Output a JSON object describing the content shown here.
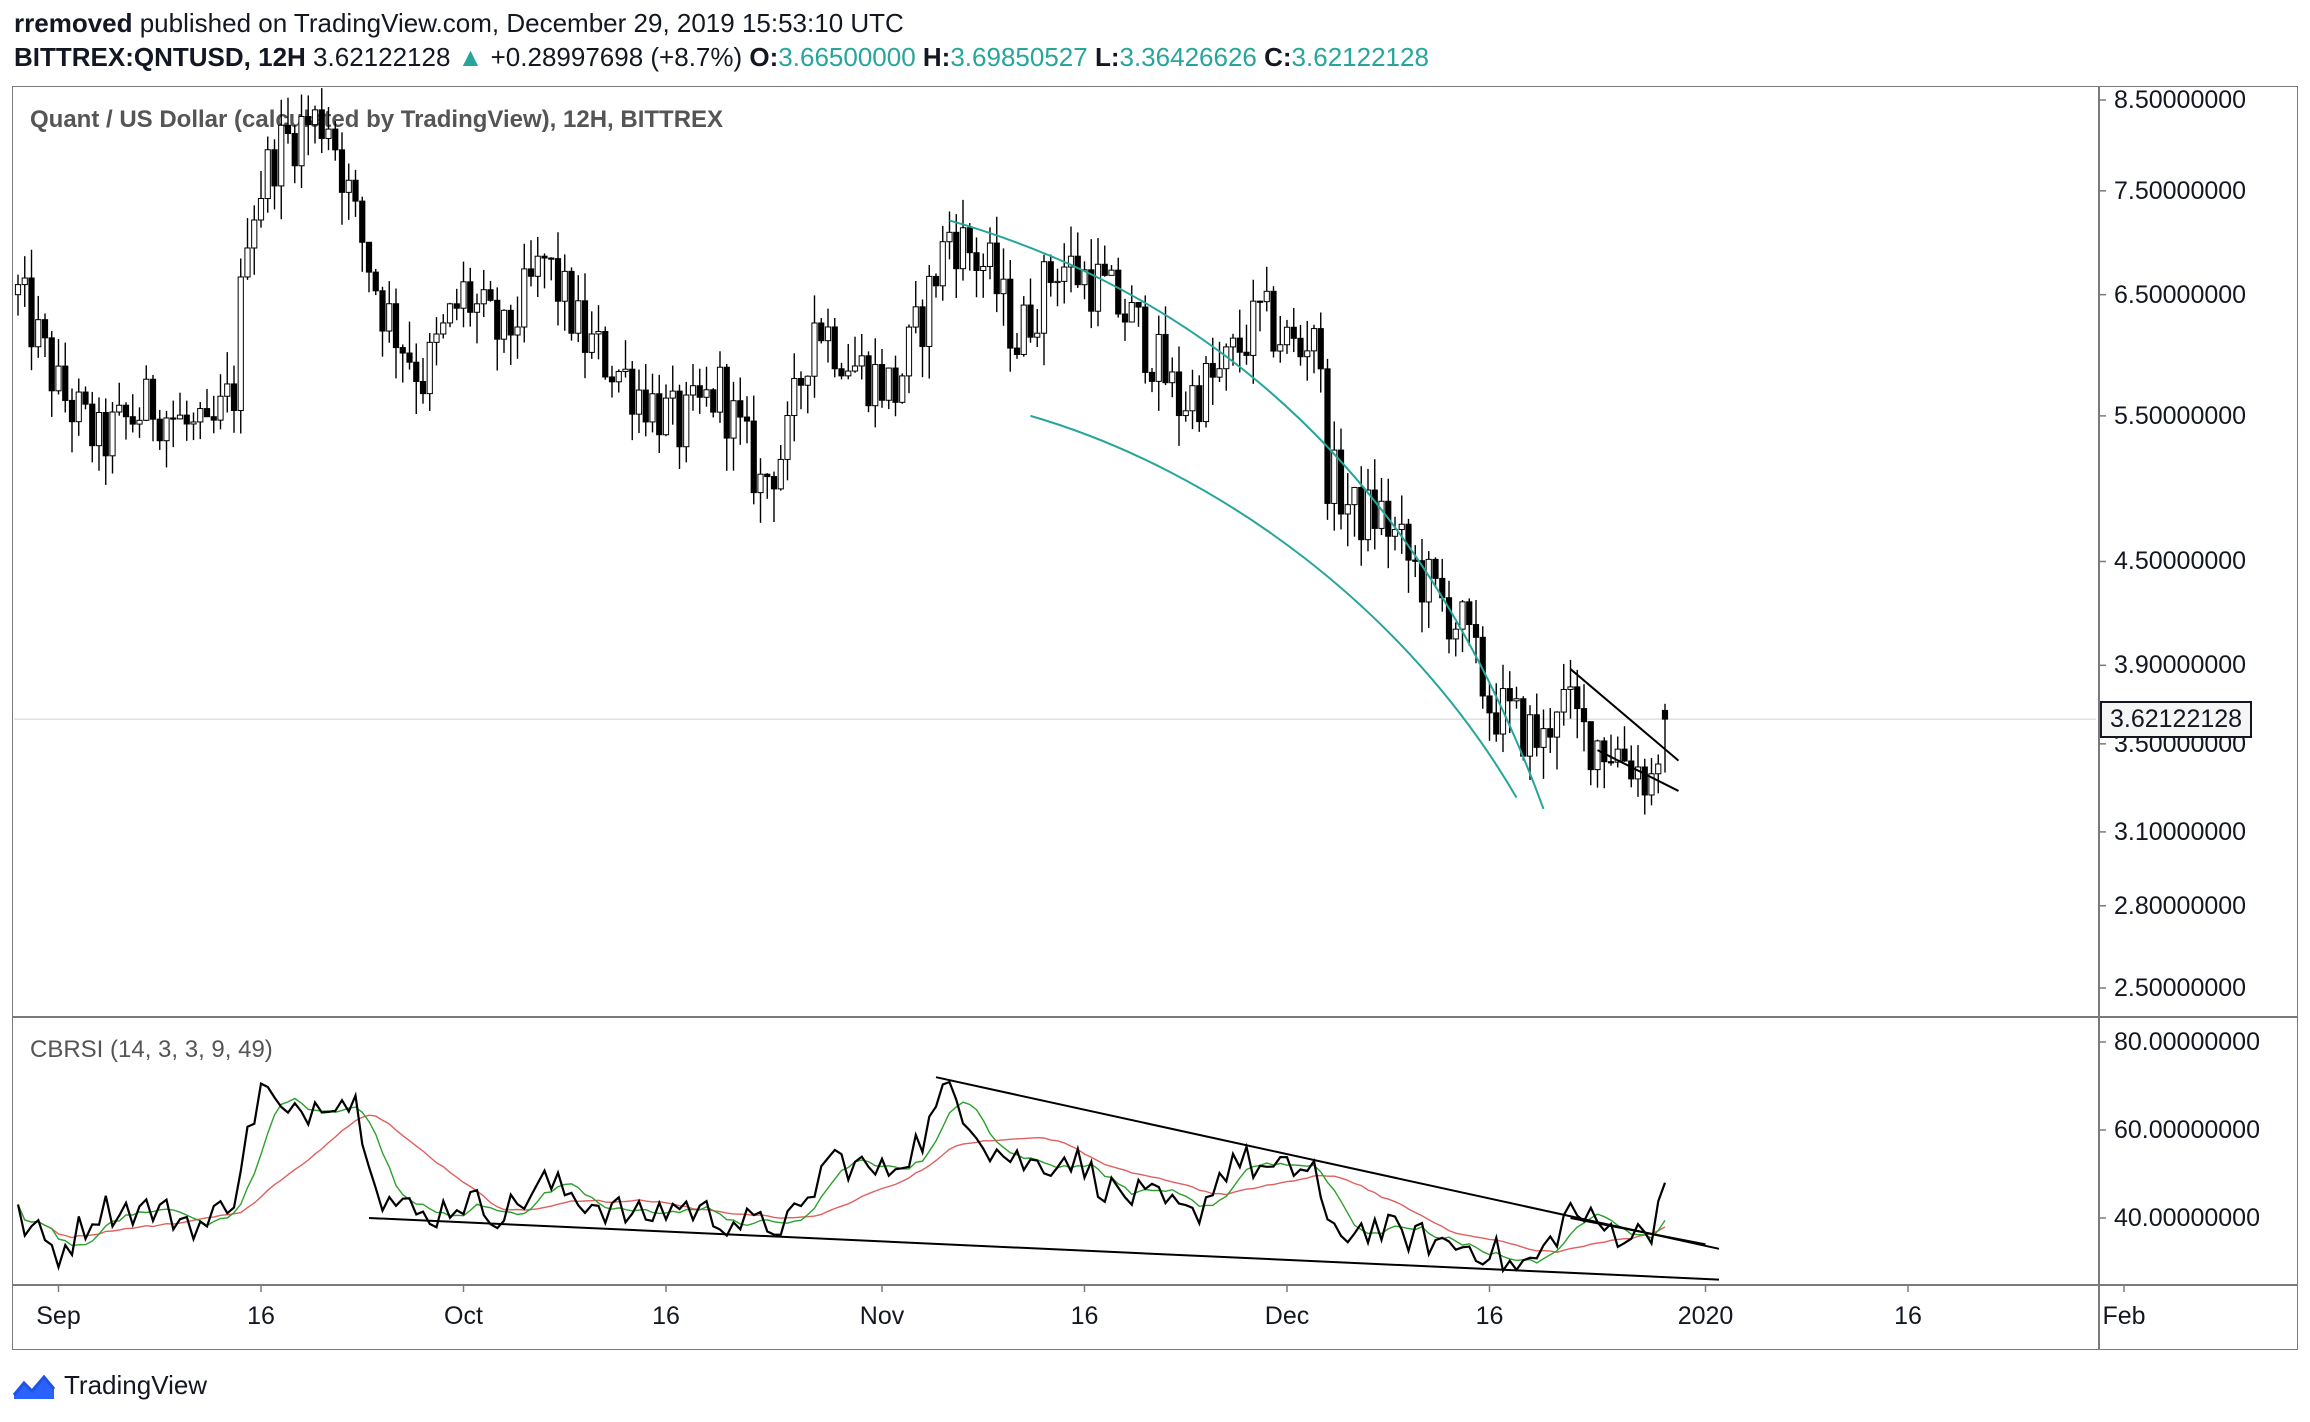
{
  "header": {
    "author": "rremoved",
    "published_text": " published on TradingView.com, December 29, 2019 15:53:10 UTC",
    "symbol": "BITTREX:QNTUSD, 12H",
    "last": "3.62122128",
    "change": "+0.28997698 (+8.7%)",
    "change_arrow": "▲",
    "o_label": "O:",
    "o_value": "3.66500000",
    "h_label": "H:",
    "h_value": "3.69850527",
    "l_label": "L:",
    "l_value": "3.36426626",
    "c_label": "C:",
    "c_value": "3.62122128"
  },
  "main_pane": {
    "title": "Quant / US Dollar (calculated by TradingView), 12H, BITTREX",
    "y_ticks": [
      "8.50000000",
      "7.50000000",
      "6.50000000",
      "5.50000000",
      "4.50000000",
      "3.90000000",
      "3.50000000",
      "3.10000000",
      "2.80000000",
      "2.50000000"
    ],
    "last_price_tag": "3.62122128"
  },
  "rsi_pane": {
    "title": "CBRSI (14, 3, 3, 9, 49)",
    "y_ticks": [
      "80.00000000",
      "60.00000000",
      "40.00000000"
    ]
  },
  "x_axis": {
    "ticks": [
      "Sep",
      "16",
      "Oct",
      "16",
      "Nov",
      "16",
      "Dec",
      "16",
      "2020",
      "16",
      "Feb"
    ]
  },
  "footer": {
    "brand": "TradingView"
  },
  "colors": {
    "up": "#26a69a",
    "channel": "#26a69a",
    "rsi_fast": "#2ca02c",
    "rsi_slow": "#e06060",
    "candle": "#000000"
  },
  "chart_data": {
    "type": "candlestick",
    "log_scale": true,
    "ylim": [
      2.35,
      8.6
    ],
    "x_start": "2019-08-29",
    "x_end": "2020-02-20",
    "anchor_closes": [
      [
        "2019-08-29",
        6.5
      ],
      [
        "2019-09-01",
        5.7
      ],
      [
        "2019-09-04",
        5.3
      ],
      [
        "2019-09-08",
        5.6
      ],
      [
        "2019-09-12",
        5.3
      ],
      [
        "2019-09-14",
        5.7
      ],
      [
        "2019-09-15",
        7.2
      ],
      [
        "2019-09-17",
        7.9
      ],
      [
        "2019-09-19",
        8.2
      ],
      [
        "2019-09-21",
        8.3
      ],
      [
        "2019-09-23",
        7.2
      ],
      [
        "2019-09-25",
        6.4
      ],
      [
        "2019-09-28",
        5.8
      ],
      [
        "2019-10-01",
        6.5
      ],
      [
        "2019-10-04",
        6.1
      ],
      [
        "2019-10-07",
        6.8
      ],
      [
        "2019-10-10",
        6.1
      ],
      [
        "2019-10-14",
        5.7
      ],
      [
        "2019-10-17",
        5.4
      ],
      [
        "2019-10-20",
        5.7
      ],
      [
        "2019-10-23",
        5.0
      ],
      [
        "2019-10-25",
        5.3
      ],
      [
        "2019-10-27",
        6.3
      ],
      [
        "2019-10-30",
        5.9
      ],
      [
        "2019-11-02",
        5.7
      ],
      [
        "2019-11-04",
        6.3
      ],
      [
        "2019-11-06",
        7.1
      ],
      [
        "2019-11-09",
        6.7
      ],
      [
        "2019-11-11",
        6.1
      ],
      [
        "2019-11-14",
        6.8
      ],
      [
        "2019-11-17",
        6.6
      ],
      [
        "2019-11-20",
        6.2
      ],
      [
        "2019-11-23",
        5.6
      ],
      [
        "2019-11-26",
        5.8
      ],
      [
        "2019-11-29",
        6.3
      ],
      [
        "2019-12-02",
        6.0
      ],
      [
        "2019-12-03",
        6.3
      ],
      [
        "2019-12-04",
        5.1
      ],
      [
        "2019-12-06",
        4.8
      ],
      [
        "2019-12-08",
        4.8
      ],
      [
        "2019-12-10",
        4.5
      ],
      [
        "2019-12-12",
        4.3
      ],
      [
        "2019-12-14",
        4.1
      ],
      [
        "2019-12-16",
        3.7
      ],
      [
        "2019-12-18",
        3.6
      ],
      [
        "2019-12-20",
        3.5
      ],
      [
        "2019-12-21",
        3.75
      ],
      [
        "2019-12-23",
        3.55
      ],
      [
        "2019-12-26",
        3.45
      ],
      [
        "2019-12-28",
        3.33
      ],
      [
        "2019-12-29",
        3.62
      ]
    ],
    "last_candle": {
      "open": 3.665,
      "high": 3.6985,
      "low": 3.3643,
      "close": 3.6212
    },
    "rsi": {
      "ylim": [
        22,
        85
      ],
      "anchors": [
        [
          "2019-08-29",
          40
        ],
        [
          "2019-09-01",
          32
        ],
        [
          "2019-09-04",
          42
        ],
        [
          "2019-09-08",
          42
        ],
        [
          "2019-09-12",
          38
        ],
        [
          "2019-09-14",
          46
        ],
        [
          "2019-09-16",
          70
        ],
        [
          "2019-09-18",
          62
        ],
        [
          "2019-09-21",
          68
        ],
        [
          "2019-09-23",
          66
        ],
        [
          "2019-09-25",
          45
        ],
        [
          "2019-09-28",
          40
        ],
        [
          "2019-10-01",
          44
        ],
        [
          "2019-10-04",
          41
        ],
        [
          "2019-10-07",
          48
        ],
        [
          "2019-10-10",
          44
        ],
        [
          "2019-10-14",
          40
        ],
        [
          "2019-10-17",
          43
        ],
        [
          "2019-10-20",
          40
        ],
        [
          "2019-10-23",
          38
        ],
        [
          "2019-10-26",
          40
        ],
        [
          "2019-10-28",
          54
        ],
        [
          "2019-11-01",
          50
        ],
        [
          "2019-11-04",
          58
        ],
        [
          "2019-11-06",
          70
        ],
        [
          "2019-11-09",
          56
        ],
        [
          "2019-11-12",
          52
        ],
        [
          "2019-11-15",
          54
        ],
        [
          "2019-11-18",
          46
        ],
        [
          "2019-11-21",
          44
        ],
        [
          "2019-11-24",
          40
        ],
        [
          "2019-11-27",
          54
        ],
        [
          "2019-11-30",
          50
        ],
        [
          "2019-12-03",
          52
        ],
        [
          "2019-12-04",
          36
        ],
        [
          "2019-12-07",
          38
        ],
        [
          "2019-12-10",
          36
        ],
        [
          "2019-12-13",
          34
        ],
        [
          "2019-12-16",
          33
        ],
        [
          "2019-12-18",
          28
        ],
        [
          "2019-12-20",
          32
        ],
        [
          "2019-12-22",
          42
        ],
        [
          "2019-12-24",
          38
        ],
        [
          "2019-12-27",
          36
        ],
        [
          "2019-12-28",
          38
        ],
        [
          "2019-12-29",
          48
        ]
      ]
    },
    "annotations": {
      "upper_arc": [
        [
          "2019-11-06",
          7.2
        ],
        [
          "2019-11-28",
          6.4
        ],
        [
          "2019-12-12",
          4.8
        ],
        [
          "2019-12-20",
          3.2
        ]
      ],
      "lower_arc": [
        [
          "2019-11-12",
          5.5
        ],
        [
          "2019-11-26",
          5.1
        ],
        [
          "2019-12-10",
          4.2
        ],
        [
          "2019-12-18",
          3.25
        ]
      ],
      "wedge_top": [
        [
          "2019-12-22",
          3.88
        ],
        [
          "2019-12-30",
          3.42
        ]
      ],
      "wedge_bottom": [
        [
          "2019-12-24",
          3.47
        ],
        [
          "2019-12-30",
          3.28
        ]
      ],
      "rsi_top_line": [
        [
          "2019-11-05",
          72
        ],
        [
          "2020-01-02",
          33
        ]
      ],
      "rsi_bottom_line": [
        [
          "2019-09-24",
          40
        ],
        [
          "2020-01-02",
          26
        ]
      ],
      "rsi_short_line": [
        [
          "2019-12-22",
          40
        ],
        [
          "2020-01-01",
          34
        ]
      ]
    }
  }
}
